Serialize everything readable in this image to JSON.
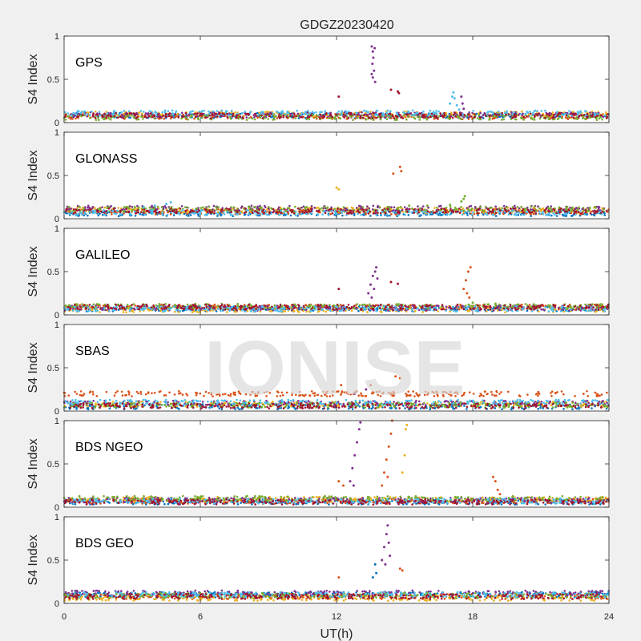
{
  "watermark": "IONISE",
  "chart_data": {
    "type": "scatter",
    "title": "GDGZ20230420",
    "xlabel": "UT(h)",
    "ylabel": "S4 Index",
    "xlim": [
      0,
      24
    ],
    "ylim": [
      0,
      1
    ],
    "xticks": [
      "0",
      "6",
      "12",
      "18",
      "24"
    ],
    "yticks": [
      "0",
      "0.5",
      "1"
    ],
    "grid": false,
    "colors": [
      "#0072BD",
      "#D95319",
      "#EDB120",
      "#7E2F8E",
      "#77AC30",
      "#4DBEEE",
      "#A2142F"
    ],
    "panels": [
      {
        "name": "GPS",
        "baselines": [
          0.08,
          0.07,
          0.1,
          0.09,
          0.06,
          0.11,
          0.08
        ],
        "features": [
          {
            "color": 3,
            "points": [
              [
                13.55,
                0.88
              ],
              [
                13.6,
                0.82
              ],
              [
                13.62,
                0.75
              ],
              [
                13.58,
                0.68
              ],
              [
                13.65,
                0.6
              ],
              [
                13.6,
                0.52
              ],
              [
                13.7,
                0.47
              ],
              [
                13.55,
                0.56
              ],
              [
                13.68,
                0.86
              ]
            ]
          },
          {
            "color": 6,
            "points": [
              [
                12.1,
                0.3
              ],
              [
                14.4,
                0.38
              ],
              [
                14.7,
                0.36
              ],
              [
                14.75,
                0.34
              ]
            ]
          },
          {
            "color": 5,
            "points": [
              [
                17.0,
                0.22
              ],
              [
                17.1,
                0.3
              ],
              [
                17.15,
                0.35
              ],
              [
                17.2,
                0.28
              ],
              [
                17.3,
                0.2
              ],
              [
                17.4,
                0.15
              ]
            ]
          },
          {
            "color": 3,
            "points": [
              [
                17.5,
                0.3
              ],
              [
                17.55,
                0.22
              ],
              [
                17.6,
                0.16
              ]
            ]
          }
        ]
      },
      {
        "name": "GLONASS",
        "baselines": [
          0.06,
          0.08,
          0.1,
          0.12,
          0.11,
          0.07,
          0.09
        ],
        "features": [
          {
            "color": 1,
            "points": [
              [
                14.5,
                0.52
              ],
              [
                14.8,
                0.6
              ],
              [
                14.85,
                0.55
              ]
            ]
          },
          {
            "color": 2,
            "points": [
              [
                12.0,
                0.36
              ],
              [
                12.1,
                0.34
              ]
            ]
          },
          {
            "color": 4,
            "points": [
              [
                15.2,
                0.15
              ],
              [
                16.0,
                0.15
              ],
              [
                17.0,
                0.16
              ],
              [
                17.5,
                0.2
              ],
              [
                17.6,
                0.23
              ],
              [
                17.65,
                0.26
              ]
            ]
          },
          {
            "color": 5,
            "points": [
              [
                3.5,
                0.13
              ],
              [
                4.0,
                0.15
              ],
              [
                4.5,
                0.17
              ],
              [
                4.7,
                0.19
              ]
            ]
          }
        ]
      },
      {
        "name": "GALILEO",
        "baselines": [
          0.07,
          0.09,
          0.06,
          0.08,
          0.1,
          0.07,
          0.09
        ],
        "features": [
          {
            "color": 3,
            "points": [
              [
                13.4,
                0.25
              ],
              [
                13.5,
                0.35
              ],
              [
                13.6,
                0.45
              ],
              [
                13.7,
                0.5
              ],
              [
                13.75,
                0.55
              ],
              [
                13.65,
                0.3
              ],
              [
                13.55,
                0.2
              ],
              [
                13.8,
                0.42
              ]
            ]
          },
          {
            "color": 1,
            "points": [
              [
                17.6,
                0.3
              ],
              [
                17.7,
                0.4
              ],
              [
                17.8,
                0.5
              ],
              [
                17.9,
                0.55
              ],
              [
                17.75,
                0.25
              ],
              [
                17.85,
                0.2
              ]
            ]
          },
          {
            "color": 6,
            "points": [
              [
                12.1,
                0.3
              ],
              [
                14.4,
                0.38
              ],
              [
                14.7,
                0.36
              ]
            ]
          },
          {
            "color": 4,
            "points": [
              [
                18.0,
                0.14
              ],
              [
                19.0,
                0.13
              ],
              [
                20.0,
                0.12
              ]
            ]
          }
        ]
      },
      {
        "name": "SBAS",
        "baselines": [
          0.05,
          0.2,
          0.08,
          0.09,
          0.07,
          0.1,
          0.06
        ],
        "features": [
          {
            "color": 1,
            "points": [
              [
                12.2,
                0.3
              ],
              [
                13.5,
                0.3
              ],
              [
                14.6,
                0.4
              ],
              [
                14.8,
                0.38
              ]
            ]
          },
          {
            "color": 3,
            "points": [
              [
                12.8,
                0.2
              ],
              [
                13.3,
                0.25
              ]
            ]
          }
        ]
      },
      {
        "name": "BDS NGEO",
        "baselines": [
          0.06,
          0.07,
          0.09,
          0.08,
          0.1,
          0.07,
          0.06
        ],
        "features": [
          {
            "color": 3,
            "points": [
              [
                12.6,
                0.3
              ],
              [
                12.7,
                0.45
              ],
              [
                12.8,
                0.6
              ],
              [
                12.9,
                0.75
              ],
              [
                13.0,
                0.9
              ],
              [
                13.05,
                0.98
              ],
              [
                12.75,
                0.25
              ]
            ]
          },
          {
            "color": 1,
            "points": [
              [
                14.1,
                0.4
              ],
              [
                14.2,
                0.55
              ],
              [
                14.3,
                0.7
              ],
              [
                14.4,
                0.85
              ],
              [
                14.45,
                1.0
              ],
              [
                14.0,
                0.25
              ],
              [
                14.25,
                0.35
              ]
            ]
          },
          {
            "color": 2,
            "points": [
              [
                14.9,
                0.4
              ],
              [
                15.0,
                0.6
              ],
              [
                15.05,
                0.9
              ],
              [
                15.1,
                0.95
              ]
            ]
          },
          {
            "color": 1,
            "points": [
              [
                18.9,
                0.35
              ],
              [
                19.0,
                0.3
              ],
              [
                19.1,
                0.2
              ],
              [
                19.2,
                0.15
              ]
            ]
          },
          {
            "color": 1,
            "points": [
              [
                12.1,
                0.3
              ],
              [
                12.3,
                0.25
              ]
            ]
          }
        ]
      },
      {
        "name": "BDS GEO",
        "baselines": [
          0.1,
          0.08,
          0.06,
          0.12,
          0.09,
          0.1,
          0.08
        ],
        "features": [
          {
            "color": 3,
            "points": [
              [
                14.0,
                0.5
              ],
              [
                14.1,
                0.65
              ],
              [
                14.2,
                0.8
              ],
              [
                14.25,
                0.9
              ],
              [
                14.3,
                0.7
              ],
              [
                14.35,
                0.55
              ],
              [
                14.15,
                0.45
              ]
            ]
          },
          {
            "color": 0,
            "points": [
              [
                13.6,
                0.3
              ],
              [
                13.7,
                0.45
              ],
              [
                13.75,
                0.35
              ]
            ]
          },
          {
            "color": 1,
            "points": [
              [
                12.1,
                0.3
              ],
              [
                14.8,
                0.4
              ],
              [
                14.9,
                0.38
              ]
            ]
          },
          {
            "color": 4,
            "points": [
              [
                15.0,
                0.12
              ],
              [
                16.0,
                0.12
              ]
            ]
          }
        ]
      }
    ]
  }
}
